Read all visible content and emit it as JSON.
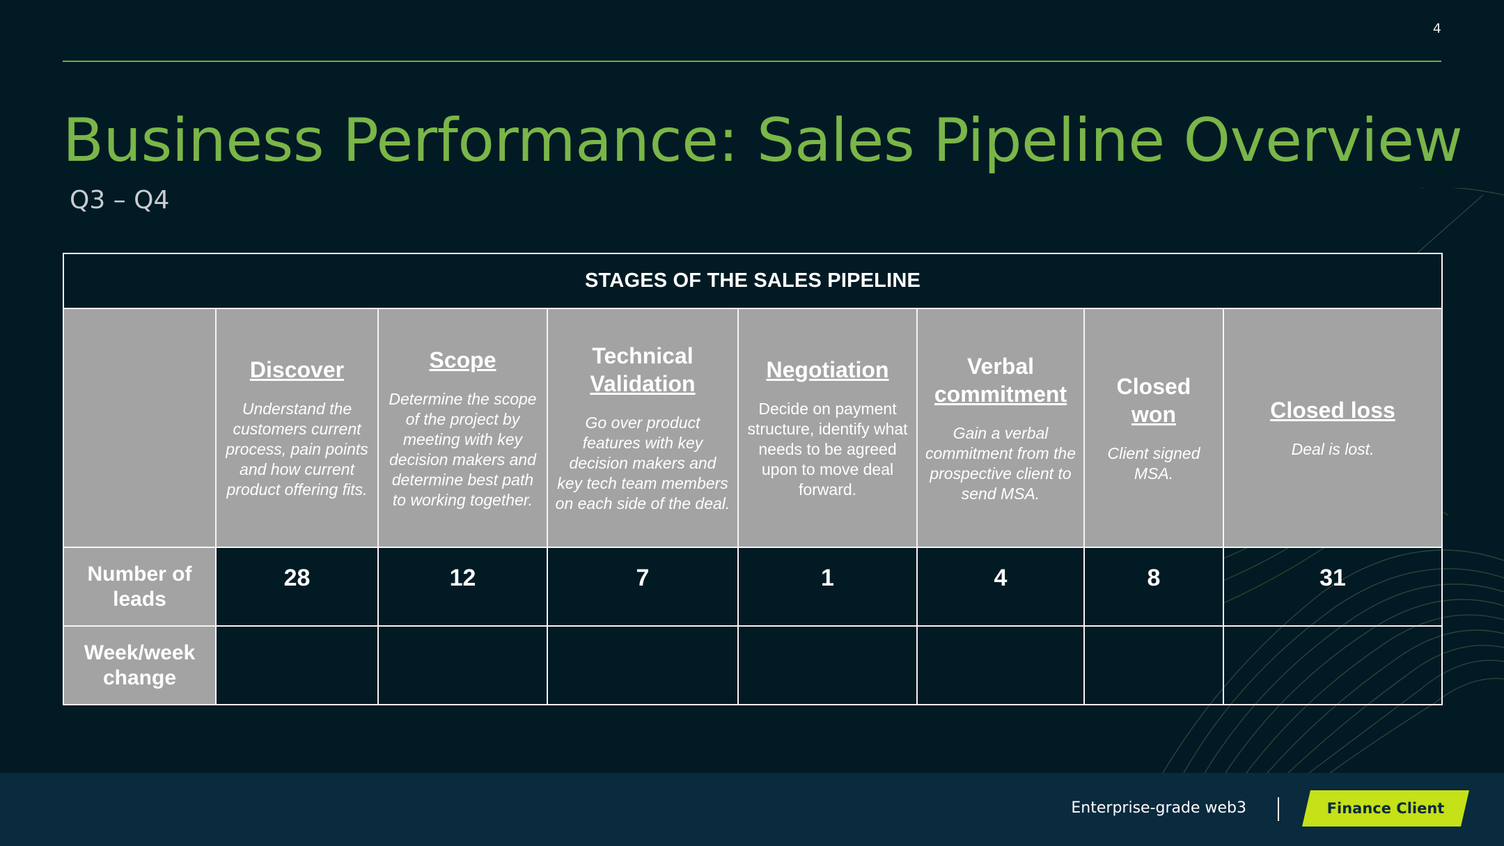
{
  "page_number": "4",
  "title": "Business Performance: Sales Pipeline Overview",
  "subtitle": "Q3 – Q4",
  "table": {
    "header": "STAGES OF THE SALES PIPELINE",
    "stages": [
      {
        "name_line1": "",
        "name_underlined": "Discover",
        "description": "Understand the customers current process, pain points and how current product offering fits.",
        "leads": "28"
      },
      {
        "name_line1": "",
        "name_underlined": "Scope",
        "description": "Determine the scope of the project by meeting with key decision makers and determine best path to working together.",
        "leads": "12"
      },
      {
        "name_line1": "Technical",
        "name_underlined": "Validation",
        "description": "Go over product features with key decision makers and key tech team members on each side of the deal.",
        "leads": "7"
      },
      {
        "name_line1": "",
        "name_underlined": "Negotiation",
        "description": "Decide on payment structure, identify what needs to be agreed upon to move deal forward.",
        "leads": "1"
      },
      {
        "name_line1": "Verbal",
        "name_underlined": "commitment",
        "description": "Gain a verbal commitment from the prospective client to send MSA.",
        "leads": "4"
      },
      {
        "name_line1": "Closed",
        "name_underlined": "won",
        "description": "Client signed MSA.",
        "leads": "8"
      },
      {
        "name_line1": "",
        "name_underlined": "Closed loss",
        "description": "Deal is lost.",
        "leads": "31"
      }
    ],
    "row_labels": {
      "leads": "Number of leads",
      "week_change": "Week/week change"
    }
  },
  "footer": {
    "tagline": "Enterprise-grade web3",
    "badge": "Finance Client"
  },
  "colors": {
    "background": "#021a24",
    "accent_green": "#7ab648",
    "badge_green": "#c5e117",
    "cell_gray": "#a3a3a3",
    "footer_bar": "#0a2a3e"
  }
}
